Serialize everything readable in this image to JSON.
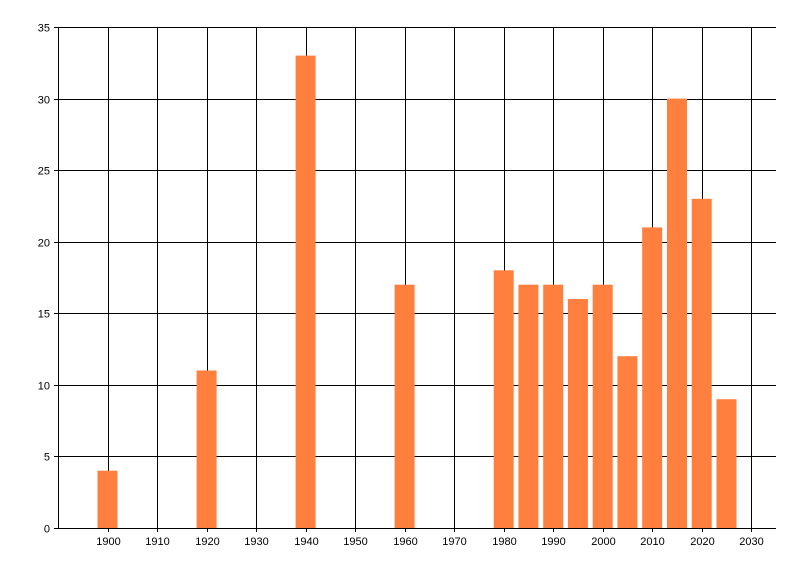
{
  "chart_data": {
    "type": "bar",
    "title": "",
    "xlabel": "",
    "ylabel": "",
    "xlim": [
      1890,
      2035
    ],
    "ylim": [
      0,
      35
    ],
    "grid": true,
    "x_ticks": [
      1900,
      1910,
      1920,
      1930,
      1940,
      1950,
      1960,
      1970,
      1980,
      1990,
      2000,
      2010,
      2020,
      2030
    ],
    "y_ticks": [
      0,
      5,
      10,
      15,
      20,
      25,
      30,
      35
    ],
    "x": [
      1900,
      1920,
      1940,
      1960,
      1980,
      1985,
      1990,
      1995,
      2000,
      2005,
      2010,
      2015,
      2020,
      2025
    ],
    "values": [
      4,
      11,
      33,
      17,
      18,
      17,
      17,
      16,
      17,
      12,
      21,
      30,
      23,
      9
    ],
    "bar_color": "#ff7f3f",
    "grid_color": "#000000",
    "background_color": "#ffffff"
  }
}
